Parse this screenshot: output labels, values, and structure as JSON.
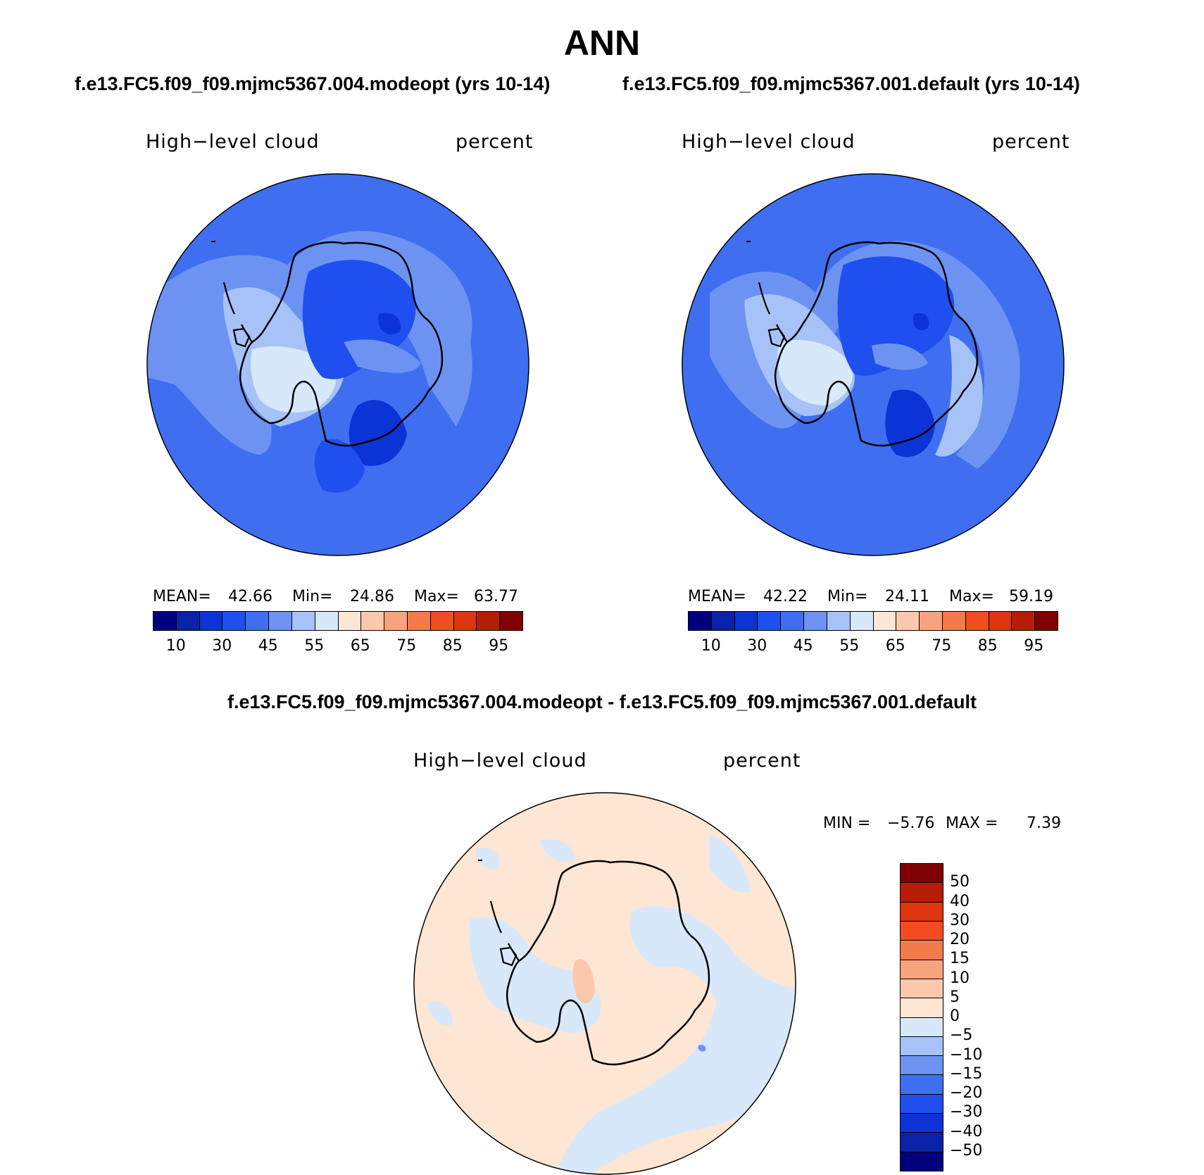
{
  "title": "ANN",
  "case1_title": "f.e13.FC5.f09_f09.mjmc5367.004.modeopt (yrs 10-14)",
  "case2_title": "f.e13.FC5.f09_f09.mjmc5367.001.default (yrs 10-14)",
  "diff_title": "f.e13.FC5.f09_f09.mjmc5367.004.modeopt - f.e13.FC5.f09_f09.mjmc5367.001.default",
  "panels": [
    {
      "variable": "High−level cloud",
      "units": "percent",
      "mean_label": "MEAN=",
      "mean": "42.66",
      "min_label": "Min=",
      "min": "24.86",
      "max_label": "Max=",
      "max": "63.77"
    },
    {
      "variable": "High−level cloud",
      "units": "percent",
      "mean_label": "MEAN=",
      "mean": "42.22",
      "min_label": "Min=",
      "min": "24.11",
      "max_label": "Max=",
      "max": "59.19"
    },
    {
      "variable": "High−level cloud",
      "units": "percent",
      "min_label": "MIN =",
      "min": "−5.76",
      "max_label": "MAX =",
      "max": "7.39"
    }
  ],
  "abs_colorbar": {
    "colors": [
      "#00007f",
      "#0a22a8",
      "#0b33d5",
      "#1f4fee",
      "#3f6ff0",
      "#6c93f2",
      "#a7c2f6",
      "#d8e8fb",
      "#fde6d3",
      "#fbc8ad",
      "#f7a37e",
      "#f57a4b",
      "#f24d21",
      "#de3410",
      "#b61d07",
      "#7f0000"
    ],
    "tick_labels": [
      "10",
      "30",
      "45",
      "55",
      "65",
      "75",
      "85",
      "95"
    ]
  },
  "diff_colorbar": {
    "colors": [
      "#7f0000",
      "#b61d07",
      "#de3410",
      "#f24d21",
      "#f57a4b",
      "#f7a37e",
      "#fbc8ad",
      "#fde6d3",
      "#d8e8fb",
      "#a7c2f6",
      "#6c93f2",
      "#3f6ff0",
      "#1f4fee",
      "#0b33d5",
      "#0a22a8",
      "#00007f"
    ],
    "tick_labels": [
      "50",
      "40",
      "30",
      "20",
      "15",
      "10",
      "5",
      "0",
      "−5",
      "−10",
      "−15",
      "−20",
      "−30",
      "−40",
      "−50"
    ]
  },
  "chart_data": [
    {
      "type": "heatmap",
      "projection": "south polar stereographic",
      "title": "f.e13.FC5.f09_f09.mjmc5367.004.modeopt (yrs 10-14)",
      "variable": "High-level cloud",
      "units": "percent",
      "mean": 42.66,
      "min": 24.86,
      "max": 63.77,
      "levels": [
        5,
        10,
        20,
        30,
        40,
        45,
        50,
        55,
        60,
        65,
        70,
        75,
        80,
        85,
        90,
        95
      ]
    },
    {
      "type": "heatmap",
      "projection": "south polar stereographic",
      "title": "f.e13.FC5.f09_f09.mjmc5367.001.default (yrs 10-14)",
      "variable": "High-level cloud",
      "units": "percent",
      "mean": 42.22,
      "min": 24.11,
      "max": 59.19,
      "levels": [
        5,
        10,
        20,
        30,
        40,
        45,
        50,
        55,
        60,
        65,
        70,
        75,
        80,
        85,
        90,
        95
      ]
    },
    {
      "type": "heatmap",
      "projection": "south polar stereographic",
      "title": "f.e13.FC5.f09_f09.mjmc5367.004.modeopt - f.e13.FC5.f09_f09.mjmc5367.001.default",
      "variable": "High-level cloud",
      "units": "percent",
      "min": -5.76,
      "max": 7.39,
      "levels": [
        -50,
        -40,
        -30,
        -20,
        -15,
        -10,
        -5,
        0,
        5,
        10,
        15,
        20,
        30,
        40,
        50
      ]
    }
  ]
}
